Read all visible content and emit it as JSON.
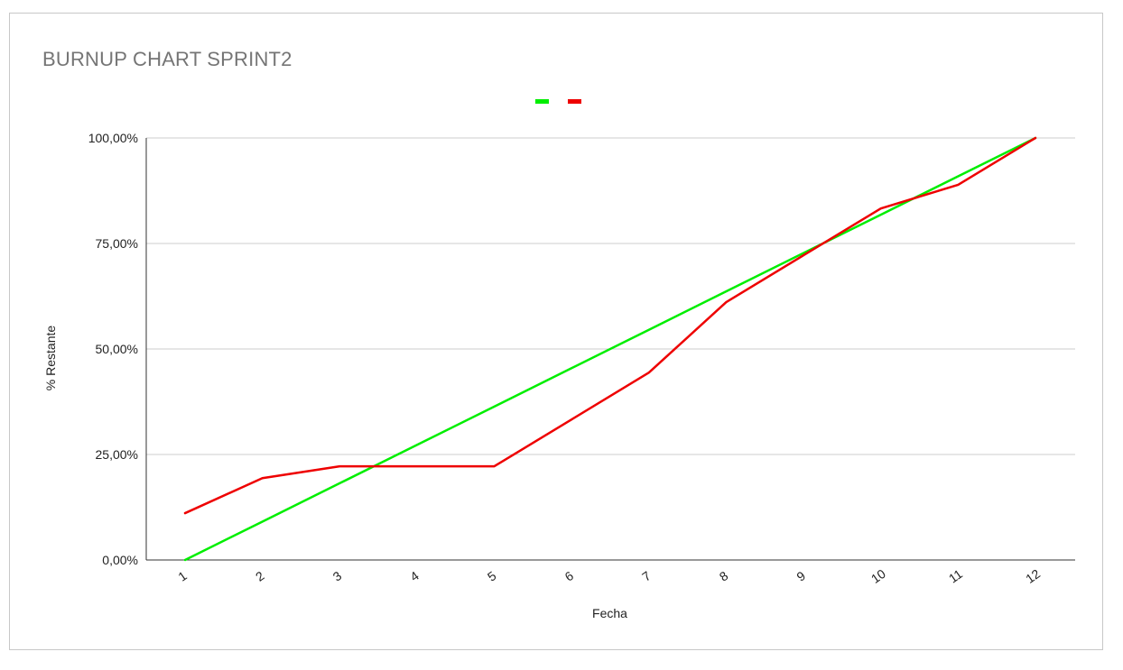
{
  "chart_data": {
    "type": "line",
    "title": "BURNUP CHART SPRINT2",
    "xlabel": "Fecha",
    "ylabel": "% Restante",
    "categories": [
      "1",
      "2",
      "3",
      "4",
      "5",
      "6",
      "7",
      "8",
      "9",
      "10",
      "11",
      "12"
    ],
    "y_ticks": [
      "0,00%",
      "25,00%",
      "50,00%",
      "75,00%",
      "100,00%"
    ],
    "ylim": [
      0,
      100
    ],
    "grid": true,
    "legend_position": "top",
    "series": [
      {
        "color": "#00ee00",
        "values": [
          0,
          9.09,
          18.18,
          27.27,
          36.36,
          45.45,
          54.55,
          63.64,
          72.73,
          81.82,
          90.91,
          100
        ]
      },
      {
        "color": "#ee0000",
        "values": [
          11.1,
          19.4,
          22.2,
          22.2,
          22.2,
          33.3,
          44.4,
          61.1,
          72.2,
          83.3,
          88.9,
          100
        ]
      }
    ]
  }
}
